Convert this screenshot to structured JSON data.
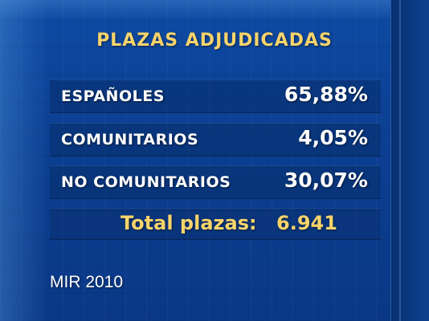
{
  "title": "PLAZAS ADJUDICADAS",
  "rows": [
    {
      "label": "ESPAÑOLES",
      "value": "65,88%"
    },
    {
      "label": "COMUNITARIOS",
      "value": "4,05%"
    },
    {
      "label": "NO COMUNITARIOS",
      "value": "30,07%"
    }
  ],
  "total": {
    "label": "Total plazas:",
    "value": "6.941"
  },
  "footer": "MIR 2010",
  "colors": {
    "background": "#0a3e8e",
    "accent_text": "#f7d46b",
    "body_text": "#ffffff"
  }
}
